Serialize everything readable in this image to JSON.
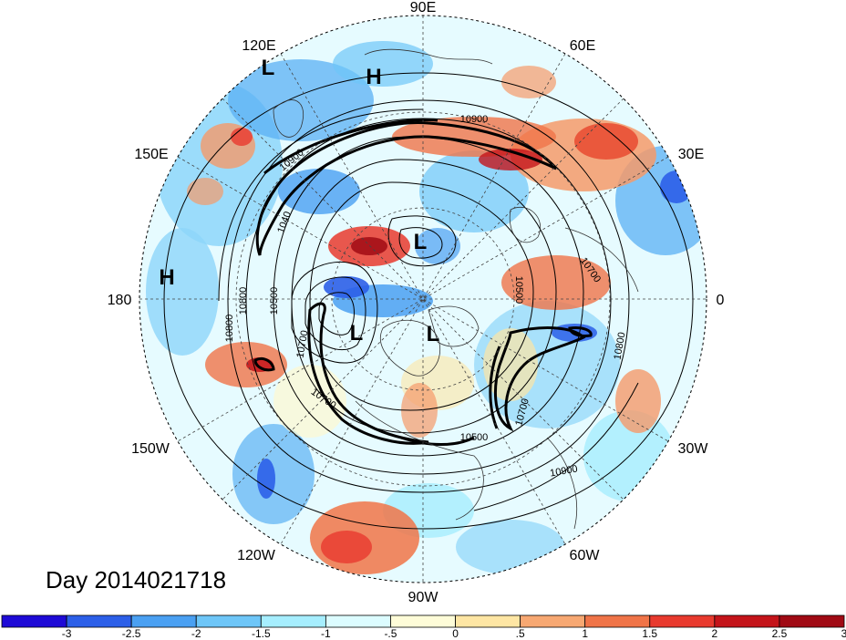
{
  "title": "Day 2014021718",
  "longitude_labels": [
    {
      "key": "90e",
      "text": "90E"
    },
    {
      "key": "60e",
      "text": "60E"
    },
    {
      "key": "120e",
      "text": "120E"
    },
    {
      "key": "30e",
      "text": "30E"
    },
    {
      "key": "150e",
      "text": "150E"
    },
    {
      "key": "0",
      "text": "0"
    },
    {
      "key": "180",
      "text": "180"
    },
    {
      "key": "30w",
      "text": "30W"
    },
    {
      "key": "150w",
      "text": "150W"
    },
    {
      "key": "60w",
      "text": "60W"
    },
    {
      "key": "120w",
      "text": "120W"
    },
    {
      "key": "90w",
      "text": "90W"
    }
  ],
  "pressure_centers": [
    {
      "type": "L",
      "region": "east-asia-upper-left"
    },
    {
      "type": "H",
      "region": "siberia-top"
    },
    {
      "type": "L",
      "region": "central-siberia"
    },
    {
      "type": "H",
      "region": "central-pacific-left"
    },
    {
      "type": "L",
      "region": "north-pacific-alaska"
    },
    {
      "type": "L",
      "region": "canadian-arctic"
    }
  ],
  "contour_labels": [
    "10900",
    "10900",
    "1040",
    "10700",
    "10800",
    "10500",
    "10500",
    "10800",
    "10700",
    "10700",
    "10800",
    "10500",
    "10900",
    "10700"
  ],
  "colorbar": {
    "colors": [
      "#1e0ad6",
      "#2c5fe8",
      "#4aa0f2",
      "#6ec6f8",
      "#a6eefe",
      "#dcfcff",
      "#fefcd8",
      "#fee6a4",
      "#f7a872",
      "#f07448",
      "#e83a2e",
      "#c4141a",
      "#a00a14"
    ],
    "tick_labels": [
      "-3",
      "-2.5",
      "-2",
      "-1.5",
      "-1",
      "-.5",
      "0",
      ".5",
      "1",
      "1.5",
      "2",
      "2.5",
      "3"
    ]
  },
  "map": {
    "projection": "north-polar-stereographic",
    "land_color": "none",
    "ocean_color": "none",
    "contour_color": "#000000"
  }
}
